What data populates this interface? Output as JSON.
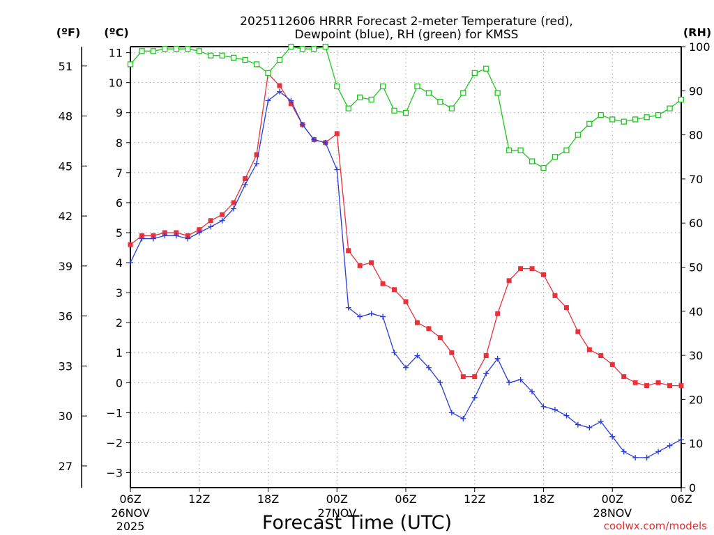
{
  "chart_data": {
    "type": "line",
    "title_line1": "2025112606 HRRR Forecast 2-meter Temperature (red),",
    "title_line2": "Dewpoint (blue), RH (green) for KMSS",
    "xlabel": "Forecast Time (UTC)",
    "left_unit_f": "(ºF)",
    "left_unit_c": "(ºC)",
    "right_unit": "(RH)",
    "credit": "coolwx.com/models",
    "ylim_c": [
      -3.5,
      11.2
    ],
    "ylim_rh": [
      0,
      100
    ],
    "xlim": [
      0,
      48
    ],
    "celsius_ticks": [
      "11",
      "10",
      "9",
      "8",
      "7",
      "6",
      "5",
      "4",
      "3",
      "2",
      "1",
      "0",
      "−1",
      "−2",
      "−3"
    ],
    "fahrenheit_ticks": [
      "51",
      "48",
      "45",
      "42",
      "39",
      "36",
      "33",
      "30",
      "27"
    ],
    "rh_ticks": [
      "100",
      "90",
      "80",
      "70",
      "60",
      "50",
      "40",
      "30",
      "20",
      "10",
      "0"
    ],
    "x_ticks": [
      {
        "label": "06Z",
        "sub1": "26NOV",
        "sub2": "2025"
      },
      {
        "label": "12Z",
        "sub1": "",
        "sub2": ""
      },
      {
        "label": "18Z",
        "sub1": "",
        "sub2": ""
      },
      {
        "label": "00Z",
        "sub1": "27NOV",
        "sub2": ""
      },
      {
        "label": "06Z",
        "sub1": "",
        "sub2": ""
      },
      {
        "label": "12Z",
        "sub1": "",
        "sub2": ""
      },
      {
        "label": "18Z",
        "sub1": "",
        "sub2": ""
      },
      {
        "label": "00Z",
        "sub1": "28NOV",
        "sub2": ""
      },
      {
        "label": "06Z",
        "sub1": "",
        "sub2": ""
      }
    ],
    "series": [
      {
        "name": "Temperature",
        "color": "#e8313a",
        "unit": "C",
        "values": [
          4.6,
          4.9,
          4.9,
          5.0,
          5.0,
          4.9,
          5.1,
          5.4,
          5.6,
          6.0,
          6.8,
          7.6,
          10.3,
          9.9,
          9.3,
          8.6,
          8.1,
          8.0,
          8.3,
          4.4,
          3.9,
          4.0,
          3.3,
          3.1,
          2.7,
          2.0,
          1.8,
          1.5,
          1.0,
          0.2,
          0.2,
          0.9,
          2.3,
          3.4,
          3.8,
          3.8,
          3.6,
          2.9,
          2.5,
          1.7,
          1.1,
          0.9,
          0.6,
          0.2,
          0.0,
          -0.1,
          0.0,
          -0.1,
          -0.1
        ]
      },
      {
        "name": "Dewpoint",
        "color": "#2b3bd8",
        "unit": "C",
        "values": [
          4.0,
          4.8,
          4.8,
          4.9,
          4.9,
          4.8,
          5.0,
          5.2,
          5.4,
          5.8,
          6.6,
          7.3,
          9.4,
          9.7,
          9.4,
          8.6,
          8.1,
          8.0,
          7.1,
          2.5,
          2.2,
          2.3,
          2.2,
          1.0,
          0.5,
          0.9,
          0.5,
          0.0,
          -1.0,
          -1.2,
          -0.5,
          0.3,
          0.8,
          0.0,
          0.1,
          -0.3,
          -0.8,
          -0.9,
          -1.1,
          -1.4,
          -1.5,
          -1.3,
          -1.8,
          -2.3,
          -2.5,
          -2.5,
          -2.3,
          -2.1,
          -1.9
        ]
      },
      {
        "name": "RH",
        "color": "#1ec81e",
        "unit": "%",
        "values": [
          96,
          99,
          99,
          99.5,
          99.5,
          99.5,
          99,
          98,
          98,
          97.5,
          97,
          96,
          94,
          97,
          100,
          99.5,
          99.5,
          100,
          91,
          86,
          88.5,
          88,
          91,
          85.5,
          85,
          91,
          89.5,
          87.5,
          86,
          89.5,
          94,
          95,
          89.5,
          76.5,
          76.5,
          74,
          72.5,
          75,
          76.5,
          80,
          82.5,
          84.5,
          83.5,
          83,
          83.5,
          84,
          84.5,
          86,
          88
        ]
      }
    ]
  }
}
